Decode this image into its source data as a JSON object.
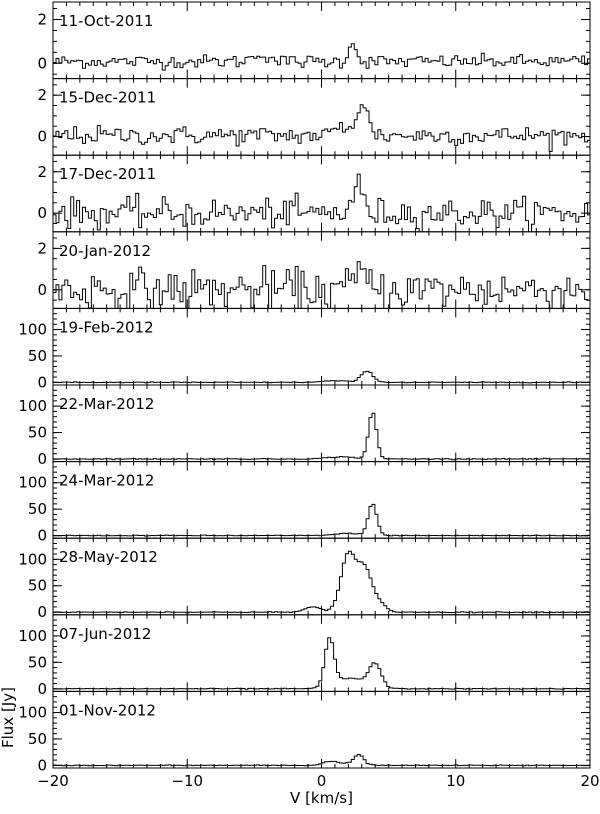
{
  "chart_data": {
    "type": "line",
    "style": "step",
    "xlabel": "V [km/s]",
    "ylabel": "Flux [Jy]",
    "xlim": [
      -20,
      20
    ],
    "x_ticks": [
      -20,
      -10,
      0,
      10,
      20
    ],
    "x_tick_labels": [
      "−20",
      "−10",
      "0",
      "10",
      "20"
    ],
    "panels": [
      {
        "date": "11-Oct-2011",
        "ylim": [
          -0.7,
          2.8
        ],
        "yticks": [
          0,
          2
        ],
        "noise": 0.15,
        "baseline": 0.08,
        "components": [
          {
            "v": 2.3,
            "amp": 1.0,
            "w": 0.25
          },
          {
            "v": -4.5,
            "amp": 0.35,
            "w": 0.6
          }
        ]
      },
      {
        "date": "15-Dec-2011",
        "ylim": [
          -0.9,
          2.8
        ],
        "yticks": [
          0,
          2
        ],
        "noise": 0.22,
        "baseline": 0.05,
        "components": [
          {
            "v": 3.0,
            "amp": 1.5,
            "w": 0.45
          },
          {
            "v": 1.5,
            "amp": 0.4,
            "w": 0.5
          }
        ]
      },
      {
        "date": "17-Dec-2011",
        "ylim": [
          -0.9,
          2.8
        ],
        "yticks": [
          0,
          2
        ],
        "noise": 0.35,
        "baseline": 0.0,
        "components": [
          {
            "v": 2.7,
            "amp": 1.3,
            "w": 0.4
          }
        ]
      },
      {
        "date": "20-Jan-2012",
        "ylim": [
          -0.9,
          2.8
        ],
        "yticks": [
          0,
          2
        ],
        "noise": 0.5,
        "baseline": 0.0,
        "components": [
          {
            "v": 2.9,
            "amp": 0.9,
            "w": 0.4
          }
        ]
      },
      {
        "date": "19-Feb-2012",
        "ylim": [
          -5,
          140
        ],
        "yticks": [
          0,
          50,
          100
        ],
        "noise": 0.4,
        "baseline": 0.0,
        "components": [
          {
            "v": 3.4,
            "amp": 21,
            "w": 0.45
          },
          {
            "v": 1.0,
            "amp": 3,
            "w": 0.9
          }
        ]
      },
      {
        "date": "22-Mar-2012",
        "ylim": [
          -5,
          140
        ],
        "yticks": [
          0,
          50,
          100
        ],
        "noise": 0.4,
        "baseline": 0.0,
        "components": [
          {
            "v": 3.8,
            "amp": 88,
            "w": 0.3
          },
          {
            "v": 1.5,
            "amp": 4,
            "w": 1.0
          }
        ]
      },
      {
        "date": "24-Mar-2012",
        "ylim": [
          -5,
          140
        ],
        "yticks": [
          0,
          50,
          100
        ],
        "noise": 0.4,
        "baseline": 0.0,
        "components": [
          {
            "v": 3.8,
            "amp": 60,
            "w": 0.32
          },
          {
            "v": 2.0,
            "amp": 4,
            "w": 1.0
          }
        ]
      },
      {
        "date": "28-May-2012",
        "ylim": [
          -5,
          140
        ],
        "yticks": [
          0,
          50,
          100
        ],
        "noise": 0.4,
        "baseline": 0.0,
        "components": [
          {
            "v": 2.0,
            "amp": 110,
            "w": 0.55
          },
          {
            "v": 3.2,
            "amp": 78,
            "w": 0.5
          },
          {
            "v": -0.6,
            "amp": 10,
            "w": 0.6
          },
          {
            "v": 4.2,
            "amp": 20,
            "w": 0.5
          }
        ]
      },
      {
        "date": "07-Jun-2012",
        "ylim": [
          -5,
          140
        ],
        "yticks": [
          0,
          50,
          100
        ],
        "noise": 0.4,
        "baseline": 0.0,
        "components": [
          {
            "v": 0.6,
            "amp": 90,
            "w": 0.35
          },
          {
            "v": 4.0,
            "amp": 44,
            "w": 0.45
          },
          {
            "v": 2.2,
            "amp": 20,
            "w": 1.1
          }
        ]
      },
      {
        "date": "01-Nov-2012",
        "ylim": [
          -5,
          140
        ],
        "yticks": [
          0,
          50,
          100
        ],
        "noise": 0.4,
        "baseline": 0.0,
        "components": [
          {
            "v": 2.8,
            "amp": 18,
            "w": 0.35
          },
          {
            "v": 0.6,
            "amp": 7,
            "w": 0.5
          },
          {
            "v": 2.0,
            "amp": 4,
            "w": 0.8
          }
        ]
      }
    ]
  }
}
